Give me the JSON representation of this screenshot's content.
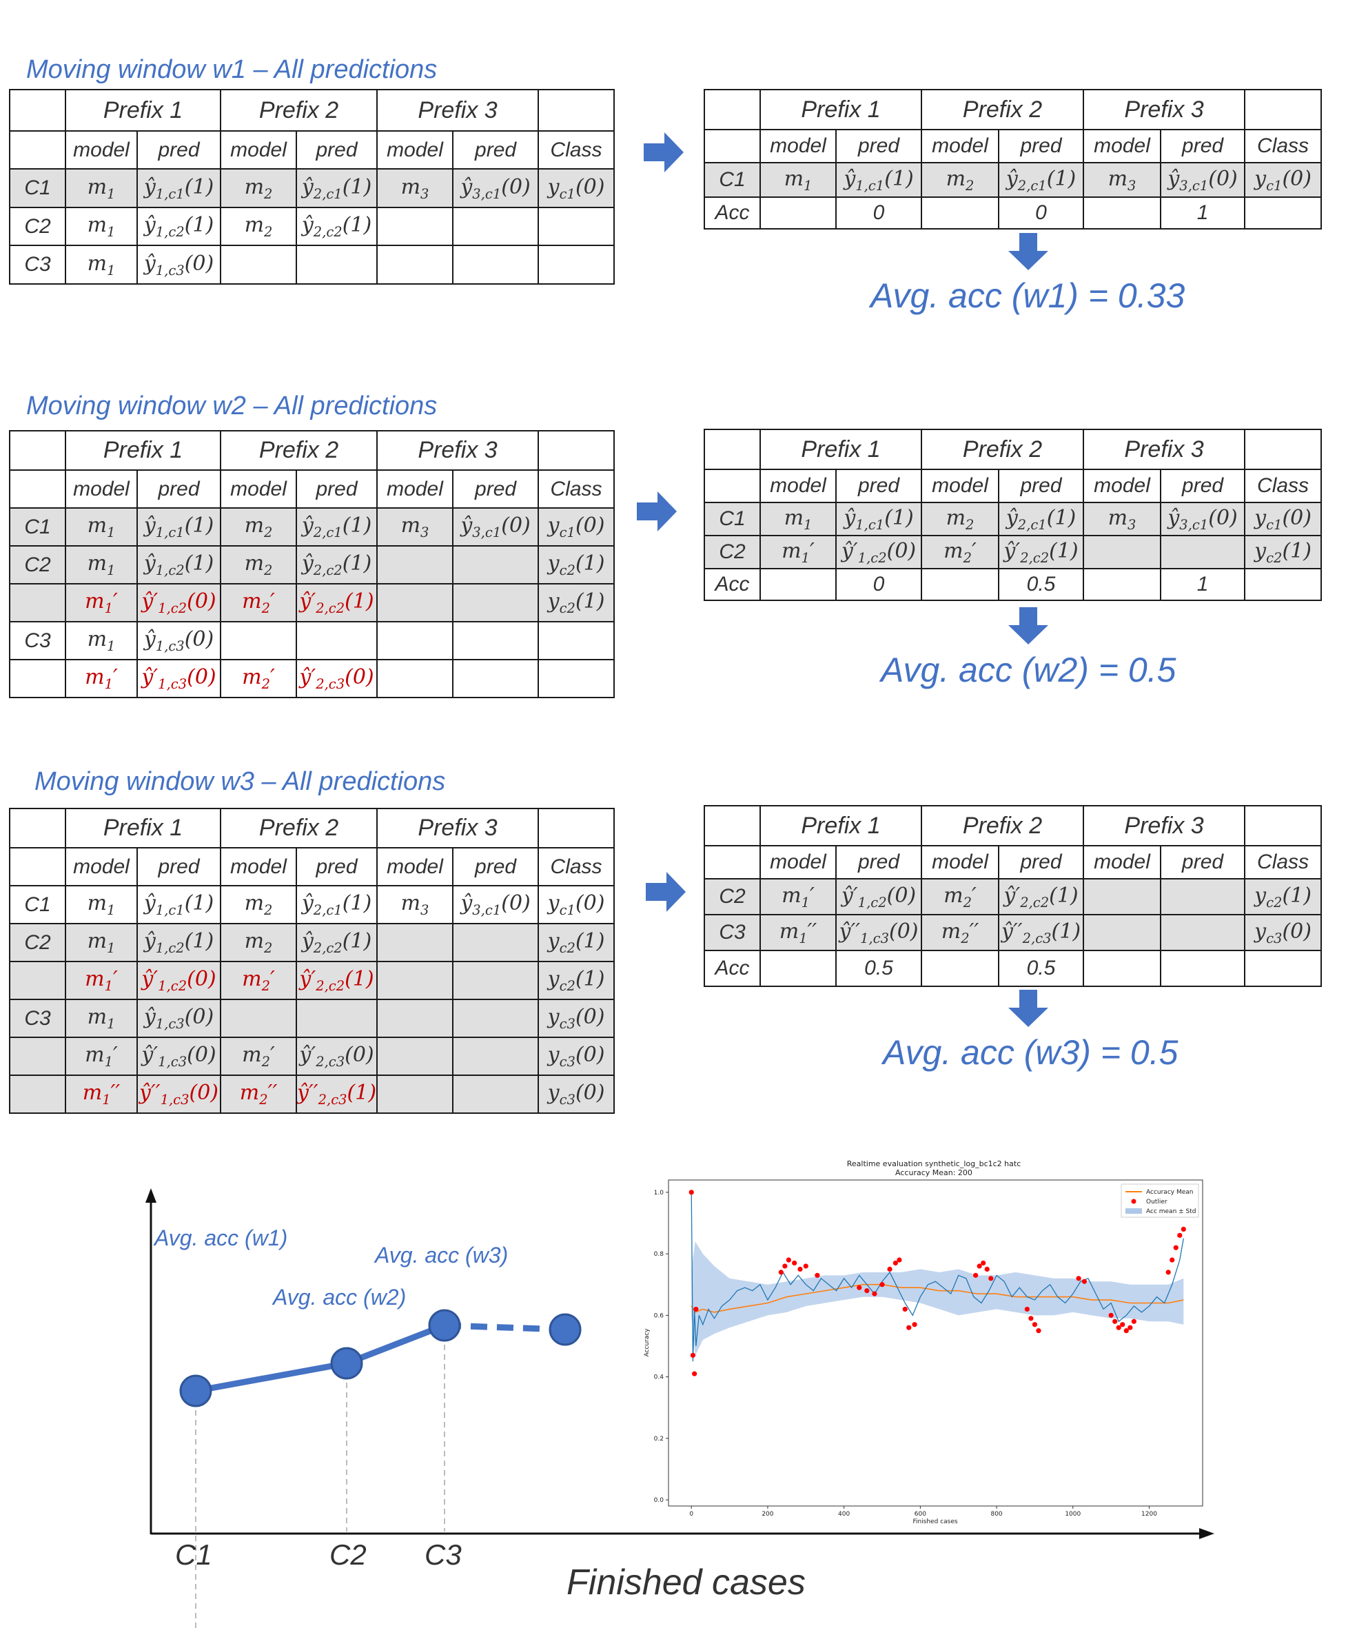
{
  "titles": {
    "w1": "Moving window w1 – All predictions",
    "w2": "Moving window w2 – All predictions",
    "w3": "Moving window w3 – All predictions"
  },
  "headers": {
    "prefix1": "Prefix 1",
    "prefix2": "Prefix 2",
    "prefix3": "Prefix 3",
    "model": "model",
    "pred": "pred",
    "class": "Class"
  },
  "case_labels": {
    "c1": "C1",
    "c2": "C2",
    "c3": "C3",
    "acc": "Acc"
  },
  "acc_values": {
    "w1": [
      "0",
      "0",
      "1"
    ],
    "w2": [
      "0",
      "0.5",
      "1"
    ],
    "w3": [
      "0.5",
      "0.5"
    ]
  },
  "avg_labels": {
    "w1": "Avg. acc (w1) = 0.33",
    "w2": "Avg. acc (w2) = 0.5",
    "w3": "Avg. acc (w3) = 0.5"
  },
  "sketch": {
    "labels": [
      "Avg. acc (w1)",
      "Avg. acc (w2)",
      "Avg. acc (w3)"
    ],
    "x_ticks": [
      "C1",
      "C2",
      "C3"
    ],
    "x_title": "Finished cases",
    "colors": {
      "accent": "#4472c4",
      "axis": "#111111"
    }
  },
  "inset": {
    "title_line1": "Realtime evaluation synthetic_log_bc1c2 hatc",
    "title_line2": "Accuracy Mean: 200",
    "xlabel": "Finished cases",
    "ylabel": "Accuracy",
    "legend": [
      "Accuracy Mean",
      "Outlier",
      "Acc mean ± Std"
    ],
    "colors": {
      "line": "#1f77b4",
      "mean": "#ff7f0e",
      "outlier": "#ff0000",
      "band": "#aec7e8"
    }
  },
  "chart_data": {
    "type": "line",
    "title": "Realtime evaluation synthetic_log_bc1c2 hatc",
    "subtitle": "Accuracy Mean: 200",
    "xlabel": "Finished cases",
    "ylabel": "Accuracy",
    "xlim": [
      -60,
      1340
    ],
    "ylim": [
      -0.02,
      1.04
    ],
    "xticks": [
      0,
      200,
      400,
      600,
      800,
      1000,
      1200
    ],
    "yticks": [
      0.0,
      0.2,
      0.4,
      0.6,
      0.8,
      1.0
    ],
    "legend_position": "top-right",
    "series": [
      {
        "name": "Accuracy Mean",
        "x": [
          0,
          10,
          30,
          60,
          100,
          150,
          200,
          250,
          300,
          350,
          400,
          450,
          500,
          550,
          600,
          650,
          700,
          750,
          800,
          850,
          900,
          950,
          1000,
          1050,
          1100,
          1150,
          1200,
          1250,
          1290
        ],
        "y": [
          0.63,
          0.61,
          0.62,
          0.61,
          0.62,
          0.63,
          0.64,
          0.66,
          0.67,
          0.68,
          0.69,
          0.7,
          0.7,
          0.69,
          0.69,
          0.68,
          0.68,
          0.67,
          0.67,
          0.66,
          0.66,
          0.66,
          0.66,
          0.65,
          0.65,
          0.64,
          0.64,
          0.64,
          0.65
        ]
      },
      {
        "name": "Acc mean ± Std",
        "x": [
          0,
          10,
          30,
          60,
          100,
          150,
          200,
          250,
          300,
          350,
          400,
          450,
          500,
          550,
          600,
          650,
          700,
          750,
          800,
          850,
          900,
          950,
          1000,
          1050,
          1100,
          1150,
          1200,
          1250,
          1290
        ],
        "lower": [
          0.6,
          0.47,
          0.52,
          0.54,
          0.56,
          0.58,
          0.6,
          0.61,
          0.63,
          0.64,
          0.65,
          0.66,
          0.66,
          0.65,
          0.64,
          0.62,
          0.6,
          0.61,
          0.62,
          0.61,
          0.6,
          0.6,
          0.61,
          0.6,
          0.59,
          0.59,
          0.58,
          0.58,
          0.57
        ],
        "upper": [
          0.75,
          0.84,
          0.8,
          0.76,
          0.72,
          0.71,
          0.7,
          0.71,
          0.72,
          0.73,
          0.73,
          0.74,
          0.74,
          0.74,
          0.75,
          0.74,
          0.75,
          0.73,
          0.73,
          0.74,
          0.73,
          0.72,
          0.72,
          0.71,
          0.71,
          0.7,
          0.7,
          0.7,
          0.72
        ]
      },
      {
        "name": "Accuracy",
        "x": [
          0,
          4,
          8,
          12,
          20,
          30,
          45,
          60,
          80,
          100,
          120,
          140,
          160,
          180,
          200,
          220,
          240,
          260,
          280,
          300,
          320,
          340,
          360,
          380,
          400,
          420,
          440,
          460,
          480,
          500,
          520,
          540,
          560,
          580,
          600,
          620,
          640,
          660,
          680,
          700,
          720,
          740,
          760,
          780,
          800,
          820,
          840,
          860,
          880,
          900,
          920,
          940,
          960,
          980,
          1000,
          1020,
          1040,
          1060,
          1080,
          1100,
          1120,
          1140,
          1160,
          1180,
          1200,
          1220,
          1240,
          1260,
          1280,
          1290
        ],
        "y": [
          1.0,
          0.45,
          0.62,
          0.5,
          0.6,
          0.57,
          0.62,
          0.59,
          0.63,
          0.65,
          0.68,
          0.69,
          0.68,
          0.7,
          0.65,
          0.69,
          0.74,
          0.7,
          0.73,
          0.7,
          0.68,
          0.72,
          0.7,
          0.68,
          0.72,
          0.69,
          0.73,
          0.7,
          0.67,
          0.71,
          0.74,
          0.69,
          0.64,
          0.6,
          0.66,
          0.7,
          0.71,
          0.69,
          0.67,
          0.73,
          0.72,
          0.66,
          0.64,
          0.68,
          0.73,
          0.71,
          0.66,
          0.69,
          0.66,
          0.65,
          0.68,
          0.7,
          0.66,
          0.64,
          0.67,
          0.71,
          0.72,
          0.67,
          0.62,
          0.64,
          0.58,
          0.6,
          0.63,
          0.61,
          0.63,
          0.66,
          0.64,
          0.7,
          0.78,
          0.85
        ]
      },
      {
        "name": "Outlier",
        "x": [
          0,
          4,
          8,
          12,
          235,
          245,
          255,
          270,
          285,
          300,
          330,
          440,
          460,
          480,
          500,
          520,
          535,
          545,
          560,
          570,
          585,
          745,
          755,
          765,
          775,
          785,
          880,
          890,
          900,
          910,
          1015,
          1030,
          1100,
          1110,
          1120,
          1130,
          1140,
          1150,
          1160,
          1250,
          1260,
          1270,
          1280,
          1290
        ],
        "y": [
          1.0,
          0.47,
          0.41,
          0.62,
          0.74,
          0.76,
          0.78,
          0.77,
          0.75,
          0.76,
          0.73,
          0.69,
          0.68,
          0.67,
          0.7,
          0.75,
          0.77,
          0.78,
          0.62,
          0.56,
          0.57,
          0.73,
          0.76,
          0.77,
          0.75,
          0.72,
          0.62,
          0.59,
          0.57,
          0.55,
          0.72,
          0.71,
          0.6,
          0.58,
          0.56,
          0.57,
          0.55,
          0.56,
          0.58,
          0.74,
          0.78,
          0.82,
          0.86,
          0.88
        ]
      }
    ]
  }
}
